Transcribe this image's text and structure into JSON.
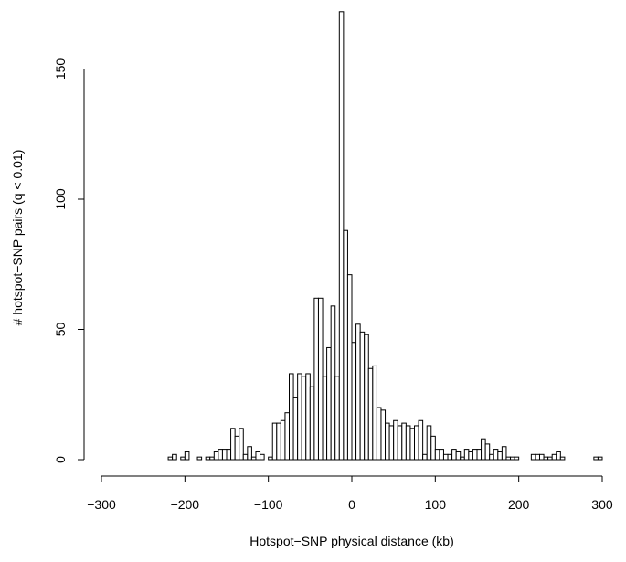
{
  "chart_data": {
    "type": "bar",
    "title": "",
    "xlabel": "Hotspot−SNP physical distance (kb)",
    "ylabel": "# hotspot−SNP pairs (q < 0.01)",
    "xlim": [
      -300,
      300
    ],
    "ylim": [
      0,
      172
    ],
    "grid": false,
    "bin_width_kb": 5,
    "x_ticks": [
      -300,
      -200,
      -100,
      0,
      100,
      200,
      300
    ],
    "x_tick_labels": [
      "−300",
      "−200",
      "−100",
      "0",
      "100",
      "200",
      "300"
    ],
    "y_ticks": [
      0,
      50,
      100,
      150
    ],
    "y_tick_labels": [
      "0",
      "50",
      "100",
      "150"
    ],
    "bins": [
      {
        "x0": -220,
        "count": 1
      },
      {
        "x0": -215,
        "count": 2
      },
      {
        "x0": -210,
        "count": 0
      },
      {
        "x0": -205,
        "count": 1
      },
      {
        "x0": -200,
        "count": 3
      },
      {
        "x0": -195,
        "count": 0
      },
      {
        "x0": -190,
        "count": 0
      },
      {
        "x0": -185,
        "count": 1
      },
      {
        "x0": -180,
        "count": 0
      },
      {
        "x0": -175,
        "count": 1
      },
      {
        "x0": -170,
        "count": 1
      },
      {
        "x0": -165,
        "count": 3
      },
      {
        "x0": -160,
        "count": 4
      },
      {
        "x0": -155,
        "count": 4
      },
      {
        "x0": -150,
        "count": 4
      },
      {
        "x0": -145,
        "count": 12
      },
      {
        "x0": -140,
        "count": 9
      },
      {
        "x0": -135,
        "count": 12
      },
      {
        "x0": -130,
        "count": 2
      },
      {
        "x0": -125,
        "count": 5
      },
      {
        "x0": -120,
        "count": 1
      },
      {
        "x0": -115,
        "count": 3
      },
      {
        "x0": -110,
        "count": 2
      },
      {
        "x0": -105,
        "count": 0
      },
      {
        "x0": -100,
        "count": 1
      },
      {
        "x0": -95,
        "count": 14
      },
      {
        "x0": -90,
        "count": 14
      },
      {
        "x0": -85,
        "count": 15
      },
      {
        "x0": -80,
        "count": 18
      },
      {
        "x0": -75,
        "count": 33
      },
      {
        "x0": -70,
        "count": 24
      },
      {
        "x0": -65,
        "count": 33
      },
      {
        "x0": -60,
        "count": 32
      },
      {
        "x0": -55,
        "count": 33
      },
      {
        "x0": -50,
        "count": 28
      },
      {
        "x0": -45,
        "count": 62
      },
      {
        "x0": -40,
        "count": 62
      },
      {
        "x0": -35,
        "count": 32
      },
      {
        "x0": -30,
        "count": 43
      },
      {
        "x0": -25,
        "count": 59
      },
      {
        "x0": -20,
        "count": 32
      },
      {
        "x0": -15,
        "count": 172
      },
      {
        "x0": -10,
        "count": 88
      },
      {
        "x0": -5,
        "count": 71
      },
      {
        "x0": 0,
        "count": 45
      },
      {
        "x0": 5,
        "count": 52
      },
      {
        "x0": 10,
        "count": 49
      },
      {
        "x0": 15,
        "count": 48
      },
      {
        "x0": 20,
        "count": 35
      },
      {
        "x0": 25,
        "count": 36
      },
      {
        "x0": 30,
        "count": 20
      },
      {
        "x0": 35,
        "count": 19
      },
      {
        "x0": 40,
        "count": 14
      },
      {
        "x0": 45,
        "count": 13
      },
      {
        "x0": 50,
        "count": 15
      },
      {
        "x0": 55,
        "count": 13
      },
      {
        "x0": 60,
        "count": 14
      },
      {
        "x0": 65,
        "count": 13
      },
      {
        "x0": 70,
        "count": 12
      },
      {
        "x0": 75,
        "count": 13
      },
      {
        "x0": 80,
        "count": 15
      },
      {
        "x0": 85,
        "count": 2
      },
      {
        "x0": 90,
        "count": 13
      },
      {
        "x0": 95,
        "count": 9
      },
      {
        "x0": 100,
        "count": 4
      },
      {
        "x0": 105,
        "count": 4
      },
      {
        "x0": 110,
        "count": 2
      },
      {
        "x0": 115,
        "count": 2
      },
      {
        "x0": 120,
        "count": 4
      },
      {
        "x0": 125,
        "count": 3
      },
      {
        "x0": 130,
        "count": 1
      },
      {
        "x0": 135,
        "count": 4
      },
      {
        "x0": 140,
        "count": 3
      },
      {
        "x0": 145,
        "count": 4
      },
      {
        "x0": 150,
        "count": 4
      },
      {
        "x0": 155,
        "count": 8
      },
      {
        "x0": 160,
        "count": 6
      },
      {
        "x0": 165,
        "count": 2
      },
      {
        "x0": 170,
        "count": 4
      },
      {
        "x0": 175,
        "count": 3
      },
      {
        "x0": 180,
        "count": 5
      },
      {
        "x0": 185,
        "count": 1
      },
      {
        "x0": 190,
        "count": 1
      },
      {
        "x0": 195,
        "count": 1
      },
      {
        "x0": 200,
        "count": 0
      },
      {
        "x0": 205,
        "count": 0
      },
      {
        "x0": 210,
        "count": 0
      },
      {
        "x0": 215,
        "count": 2
      },
      {
        "x0": 220,
        "count": 2
      },
      {
        "x0": 225,
        "count": 2
      },
      {
        "x0": 230,
        "count": 1
      },
      {
        "x0": 235,
        "count": 1
      },
      {
        "x0": 240,
        "count": 2
      },
      {
        "x0": 245,
        "count": 3
      },
      {
        "x0": 250,
        "count": 1
      },
      {
        "x0": 255,
        "count": 0
      },
      {
        "x0": 260,
        "count": 0
      },
      {
        "x0": 265,
        "count": 0
      },
      {
        "x0": 270,
        "count": 0
      },
      {
        "x0": 275,
        "count": 0
      },
      {
        "x0": 280,
        "count": 0
      },
      {
        "x0": 285,
        "count": 0
      },
      {
        "x0": 290,
        "count": 1
      },
      {
        "x0": 295,
        "count": 1
      }
    ]
  }
}
